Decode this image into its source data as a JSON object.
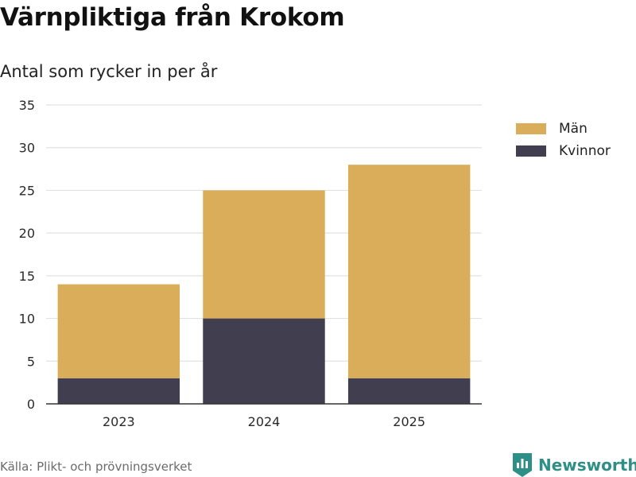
{
  "title": "Värnpliktiga från Krokom",
  "subtitle": "Antal som rycker in per år",
  "source": "Källa: Plikt- och prövningsverket",
  "brand": {
    "name": "Newsworthy",
    "icon": "newsworthy-logo-icon",
    "color": "#2e8f86"
  },
  "colors": {
    "men": "#d9ad5a",
    "women": "#413f4f",
    "grid": "#e2e2e2",
    "axis": "#333333"
  },
  "chart_data": {
    "type": "bar",
    "stacked": true,
    "categories": [
      "2023",
      "2024",
      "2025"
    ],
    "series": [
      {
        "name": "Kvinnor",
        "values": [
          3,
          10,
          3
        ],
        "color": "#413f4f"
      },
      {
        "name": "Män",
        "values": [
          11,
          15,
          25
        ],
        "color": "#d9ad5a"
      }
    ],
    "ylim": [
      0,
      35
    ],
    "yticks": [
      0,
      5,
      10,
      15,
      20,
      25,
      30,
      35
    ],
    "grid": true,
    "legend_position": "right",
    "legend": [
      "Män",
      "Kvinnor"
    ]
  }
}
